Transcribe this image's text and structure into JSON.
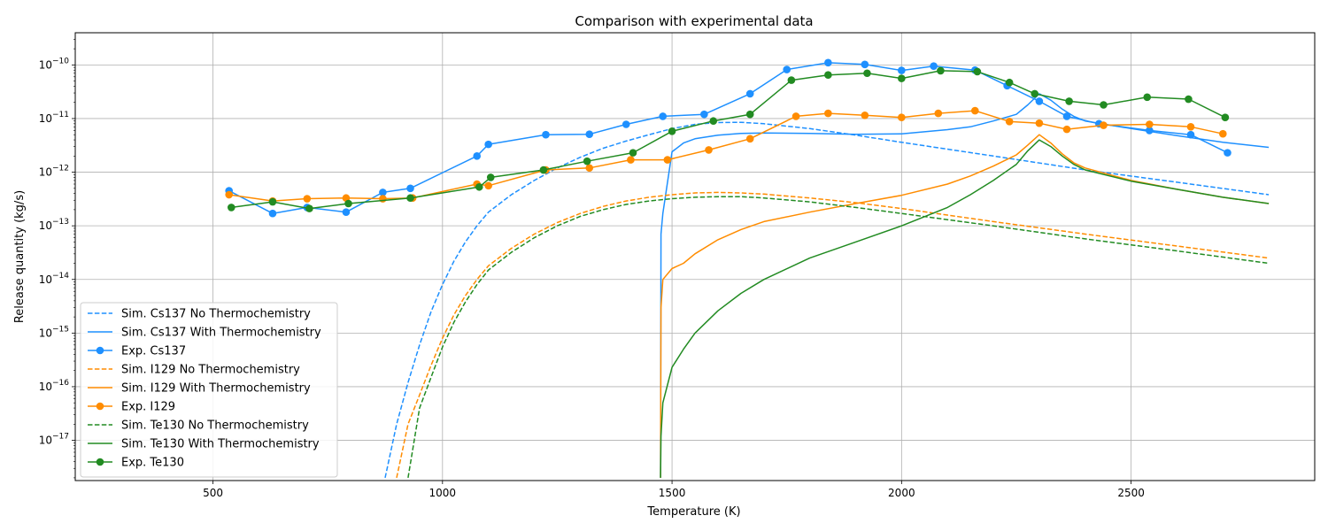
{
  "chart_data": {
    "type": "line",
    "title": "Comparison with experimental data",
    "xlabel": "Temperature (K)",
    "ylabel": "Release quantity (kg/s)",
    "xscale": "linear",
    "yscale": "log",
    "xlim": [
      200,
      2900
    ],
    "ylim_exp": [
      -17.75,
      -9.4
    ],
    "xticks": [
      500,
      1000,
      1500,
      2000,
      2500
    ],
    "yticks_exp": [
      -17,
      -16,
      -15,
      -14,
      -13,
      -12,
      -11,
      -10
    ],
    "grid": true,
    "legend_position": "lower-left",
    "series": [
      {
        "name": "Sim. Cs137 No Thermochemistry",
        "color": "#1e90ff",
        "style": "dashed",
        "marker": false,
        "x": [
          875,
          900,
          925,
          950,
          975,
          1000,
          1025,
          1050,
          1075,
          1100,
          1150,
          1200,
          1250,
          1300,
          1350,
          1400,
          1450,
          1500,
          1550,
          1600,
          1650,
          1700,
          1800,
          1900,
          2000,
          2200,
          2400,
          2600,
          2800
        ],
        "y": [
          2e-18,
          2e-17,
          1.2e-16,
          6e-16,
          2.5e-15,
          8e-15,
          2.2e-14,
          5e-14,
          1e-13,
          1.8e-13,
          3.8e-13,
          7e-13,
          1.2e-12,
          1.9e-12,
          2.8e-12,
          3.8e-12,
          5e-12,
          6.5e-12,
          7.8e-12,
          8.4e-12,
          8.5e-12,
          8e-12,
          6.5e-12,
          4.9e-12,
          3.6e-12,
          2e-12,
          1.1e-12,
          6.5e-13,
          3.8e-13
        ]
      },
      {
        "name": "Sim. Cs137 With Thermochemistry",
        "color": "#1e90ff",
        "style": "solid",
        "marker": false,
        "x": [
          1475,
          1476,
          1480,
          1500,
          1525,
          1550,
          1600,
          1650,
          1700,
          1800,
          1900,
          2000,
          2100,
          2150,
          2200,
          2250,
          2275,
          2300,
          2325,
          2350,
          2375,
          2400,
          2500,
          2600,
          2700,
          2800
        ],
        "y": [
          2e-18,
          7e-14,
          1.7e-13,
          2.4e-12,
          3.5e-12,
          4.2e-12,
          4.9e-12,
          5.3e-12,
          5.4e-12,
          5.3e-12,
          5.1e-12,
          5.2e-12,
          6.2e-12,
          7e-12,
          9e-12,
          1.2e-11,
          1.8e-11,
          2.9e-11,
          2.2e-11,
          1.5e-11,
          1.1e-11,
          9e-12,
          6.5e-12,
          4.8e-12,
          3.6e-12,
          2.9e-12
        ]
      },
      {
        "name": "Exp. Cs137",
        "color": "#1e90ff",
        "style": "solid",
        "marker": true,
        "x": [
          535,
          630,
          705,
          790,
          870,
          930,
          1075,
          1100,
          1225,
          1320,
          1400,
          1480,
          1570,
          1670,
          1750,
          1840,
          1920,
          2000,
          2070,
          2160,
          2230,
          2300,
          2360,
          2430,
          2540,
          2630,
          2710
        ],
        "y": [
          4.5e-13,
          1.7e-13,
          2.2e-13,
          1.8e-13,
          4.2e-13,
          5e-13,
          2e-12,
          3.3e-12,
          5e-12,
          5.1e-12,
          7.8e-12,
          1.1e-11,
          1.2e-11,
          2.9e-11,
          8.2e-11,
          1.1e-10,
          1.02e-10,
          7.9e-11,
          9.5e-11,
          8e-11,
          4.1e-11,
          2.1e-11,
          1.1e-11,
          8e-12,
          6e-12,
          5e-12,
          2.3e-12
        ]
      },
      {
        "name": "Sim. I129 No Thermochemistry",
        "color": "#ff8c00",
        "style": "dashed",
        "marker": false,
        "x": [
          900,
          925,
          950,
          975,
          1000,
          1025,
          1050,
          1075,
          1100,
          1150,
          1200,
          1250,
          1300,
          1350,
          1400,
          1450,
          1500,
          1550,
          1600,
          1650,
          1700,
          1800,
          1900,
          2000,
          2200,
          2400,
          2600,
          2800
        ],
        "y": [
          2e-18,
          2e-17,
          7e-17,
          2.5e-16,
          8e-16,
          2.2e-15,
          5e-15,
          1e-14,
          1.8e-14,
          3.8e-14,
          7e-14,
          1.15e-13,
          1.7e-13,
          2.3e-13,
          2.9e-13,
          3.4e-13,
          3.8e-13,
          4.1e-13,
          4.2e-13,
          4.1e-13,
          3.9e-13,
          3.3e-13,
          2.7e-13,
          2.1e-13,
          1.2e-13,
          7e-14,
          4.2e-14,
          2.5e-14
        ]
      },
      {
        "name": "Sim. I129 With Thermochemistry",
        "color": "#ff8c00",
        "style": "solid",
        "marker": false,
        "x": [
          1475,
          1476,
          1480,
          1500,
          1525,
          1550,
          1600,
          1650,
          1700,
          1800,
          1900,
          2000,
          2100,
          2150,
          2200,
          2250,
          2275,
          2300,
          2325,
          2350,
          2375,
          2400,
          2500,
          2600,
          2700,
          2800
        ],
        "y": [
          2e-18,
          3e-15,
          1e-14,
          1.6e-14,
          2e-14,
          3e-14,
          5.5e-14,
          8.5e-14,
          1.2e-13,
          1.8e-13,
          2.6e-13,
          3.7e-13,
          6e-13,
          8.5e-13,
          1.3e-12,
          2.1e-12,
          3.2e-12,
          5e-12,
          3.5e-12,
          2.2e-12,
          1.5e-12,
          1.2e-12,
          7e-13,
          4.8e-13,
          3.4e-13,
          2.6e-13
        ]
      },
      {
        "name": "Exp. I129",
        "color": "#ff8c00",
        "style": "solid",
        "marker": true,
        "x": [
          535,
          630,
          705,
          790,
          870,
          935,
          1075,
          1100,
          1225,
          1320,
          1410,
          1490,
          1580,
          1670,
          1770,
          1840,
          1920,
          2000,
          2080,
          2160,
          2235,
          2300,
          2360,
          2440,
          2540,
          2630,
          2700
        ],
        "y": [
          3.8e-13,
          2.9e-13,
          3.2e-13,
          3.3e-13,
          3.2e-13,
          3.3e-13,
          6e-13,
          5.6e-13,
          1.1e-12,
          1.2e-12,
          1.7e-12,
          1.7e-12,
          2.6e-12,
          4.2e-12,
          1.1e-11,
          1.25e-11,
          1.15e-11,
          1.05e-11,
          1.25e-11,
          1.4e-11,
          8.8e-12,
          8.2e-12,
          6.3e-12,
          7.5e-12,
          7.8e-12,
          7e-12,
          5.2e-12
        ]
      },
      {
        "name": "Sim. Te130 No Thermochemistry",
        "color": "#228b22",
        "style": "dashed",
        "marker": false,
        "x": [
          925,
          950,
          975,
          1000,
          1025,
          1050,
          1075,
          1100,
          1150,
          1200,
          1250,
          1300,
          1350,
          1400,
          1450,
          1500,
          1550,
          1600,
          1650,
          1700,
          1800,
          1900,
          2000,
          2200,
          2400,
          2600,
          2800
        ],
        "y": [
          2e-18,
          4e-17,
          1.5e-16,
          5.5e-16,
          1.6e-15,
          3.8e-15,
          8e-15,
          1.5e-14,
          3.2e-14,
          6e-14,
          1e-13,
          1.5e-13,
          2e-13,
          2.5e-13,
          2.9e-13,
          3.2e-13,
          3.4e-13,
          3.5e-13,
          3.5e-13,
          3.3e-13,
          2.8e-13,
          2.2e-13,
          1.7e-13,
          1e-13,
          5.7e-14,
          3.4e-14,
          2e-14
        ]
      },
      {
        "name": "Sim. Te130 With Thermochemistry",
        "color": "#228b22",
        "style": "solid",
        "marker": false,
        "x": [
          1475,
          1476,
          1480,
          1500,
          1525,
          1550,
          1600,
          1650,
          1700,
          1800,
          1900,
          2000,
          2100,
          2150,
          2200,
          2250,
          2275,
          2300,
          2325,
          2350,
          2375,
          2400,
          2500,
          2600,
          2700,
          2800
        ],
        "y": [
          2e-18,
          1.2e-17,
          5e-17,
          2.3e-16,
          5e-16,
          1e-15,
          2.6e-15,
          5.5e-15,
          1e-14,
          2.5e-14,
          5e-14,
          1e-13,
          2.2e-13,
          3.8e-13,
          7e-13,
          1.4e-12,
          2.5e-12,
          4e-12,
          3e-12,
          2e-12,
          1.4e-12,
          1.1e-12,
          6.8e-13,
          4.8e-13,
          3.4e-13,
          2.6e-13
        ]
      },
      {
        "name": "Exp. Te130",
        "color": "#228b22",
        "style": "solid",
        "marker": true,
        "x": [
          540,
          630,
          710,
          795,
          930,
          1080,
          1105,
          1220,
          1315,
          1415,
          1500,
          1590,
          1670,
          1760,
          1840,
          1925,
          2000,
          2085,
          2165,
          2235,
          2290,
          2365,
          2440,
          2535,
          2625,
          2705
        ],
        "y": [
          2.2e-13,
          2.8e-13,
          2.1e-13,
          2.6e-13,
          3.3e-13,
          5.3e-13,
          8e-13,
          1.1e-12,
          1.6e-12,
          2.3e-12,
          5.8e-12,
          9e-12,
          1.2e-11,
          5.2e-11,
          6.5e-11,
          7e-11,
          5.6e-11,
          7.8e-11,
          7.5e-11,
          4.7e-11,
          2.9e-11,
          2.1e-11,
          1.8e-11,
          2.5e-11,
          2.3e-11,
          1.05e-11
        ]
      }
    ]
  }
}
